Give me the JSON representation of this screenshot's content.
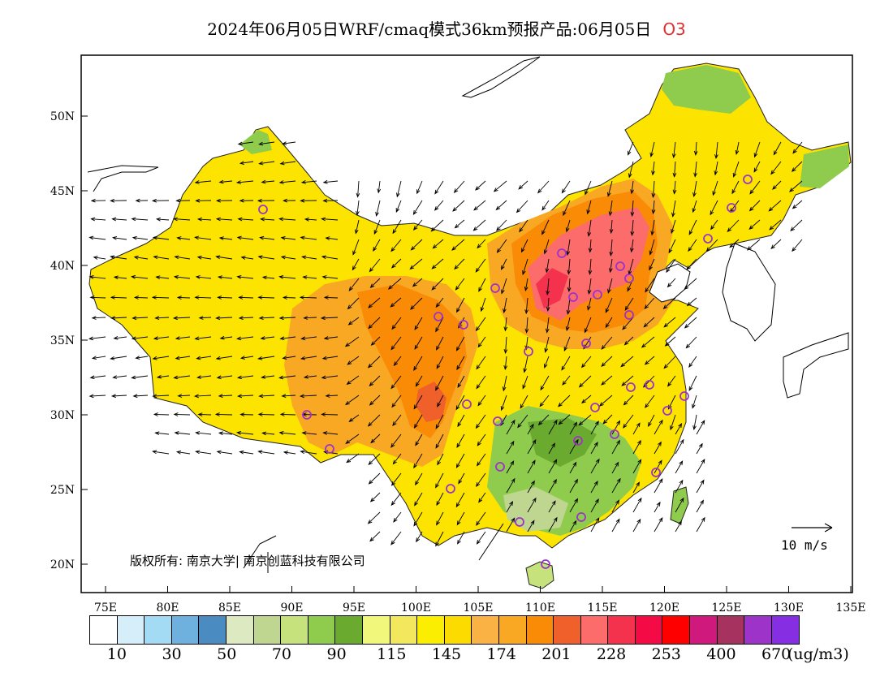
{
  "title": "2024年06月05日WRF/cmaq模式36km预报产品:06月05日",
  "species": "O3",
  "copyright": "版权所有: 南京大学| 南京创蓝科技有限公司",
  "wind_scale_label": "10 m/s",
  "lat_ticks": [
    "50N",
    "45N",
    "40N",
    "35N",
    "30N",
    "25N",
    "20N"
  ],
  "lon_ticks": [
    "75E",
    "80E",
    "85E",
    "90E",
    "95E",
    "100E",
    "105E",
    "110E",
    "115E",
    "120E",
    "125E",
    "130E",
    "135E"
  ],
  "colorbar": {
    "colors": [
      "#ffffff",
      "#d6eefa",
      "#a3dbf5",
      "#6eb0de",
      "#4a8cc2",
      "#dde9c0",
      "#bed68f",
      "#c6e27c",
      "#8fcb4d",
      "#6aaa2e",
      "#f1f77a",
      "#f3e75d",
      "#fbee00",
      "#fcdc00",
      "#f9b243",
      "#f9a824",
      "#f98b07",
      "#f0602a",
      "#fb6c6a",
      "#f5324e",
      "#f40a44",
      "#ff0000",
      "#d0197c",
      "#a6325f",
      "#9d33c8",
      "#862ee2"
    ],
    "labels": [
      "10",
      "30",
      "50",
      "70",
      "90",
      "115",
      "145",
      "174",
      "201",
      "228",
      "253",
      "400",
      "670"
    ],
    "unit": "(ug/m3)"
  },
  "stations_icon": "circle-marker-icon"
}
